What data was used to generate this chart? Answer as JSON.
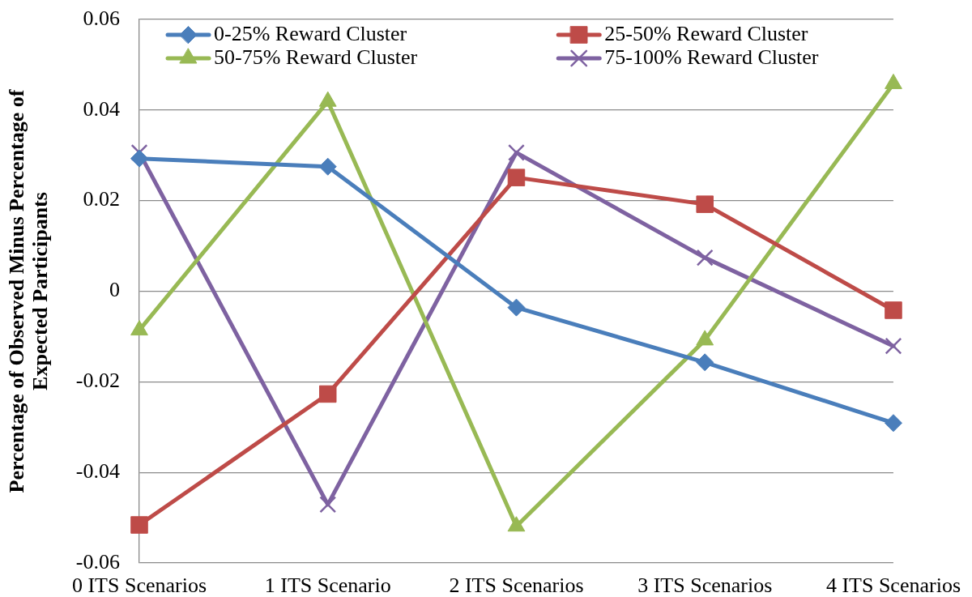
{
  "chart_data": {
    "type": "line",
    "ylabel": "Percentage of Observed Minus Percentage of Expected Participants",
    "categories": [
      "0 ITS Scenarios",
      "1 ITS Scenario",
      "2 ITS Scenarios",
      "3 ITS Scenarios",
      "4 ITS Scenarios"
    ],
    "series": [
      {
        "name": "0-25% Reward Cluster",
        "color": "#4a7ebb",
        "marker": "diamond",
        "values": [
          0.0293,
          0.0275,
          -0.0036,
          -0.0157,
          -0.0291
        ]
      },
      {
        "name": "25-50% Reward Cluster",
        "color": "#be4b48",
        "marker": "square",
        "values": [
          -0.0516,
          -0.0227,
          0.0251,
          0.0192,
          -0.0042
        ]
      },
      {
        "name": "50-75% Reward Cluster",
        "color": "#98b954",
        "marker": "triangle",
        "values": [
          -0.0086,
          0.0419,
          -0.0519,
          -0.0108,
          0.0458
        ]
      },
      {
        "name": "75-100% Reward Cluster",
        "color": "#7e62a1",
        "marker": "cross",
        "values": [
          0.0306,
          -0.0471,
          0.0306,
          0.0074,
          -0.0121
        ]
      }
    ],
    "ylim": [
      -0.06,
      0.06
    ],
    "yticks": [
      -0.06,
      -0.04,
      -0.02,
      0,
      0.02,
      0.04,
      0.06
    ],
    "grid": "y",
    "legend": "top"
  }
}
